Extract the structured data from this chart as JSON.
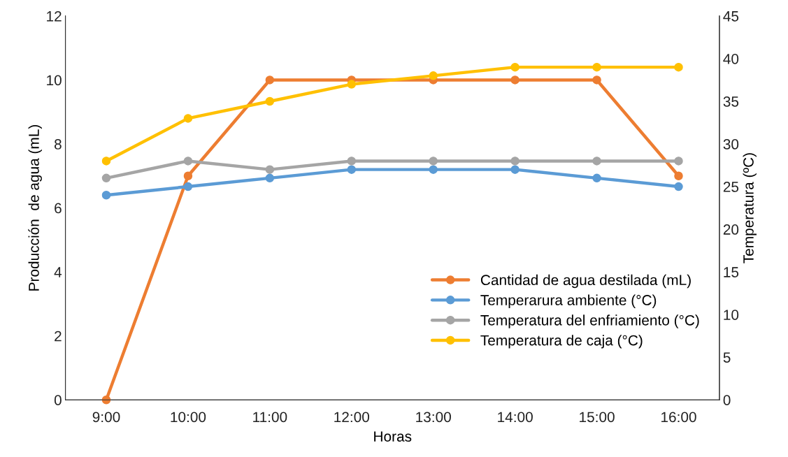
{
  "chart_data": {
    "type": "line",
    "xlabel": "Horas",
    "ylabel": "Producción  de agua (mL)",
    "y2label": "Temperatura (ºC)",
    "categories": [
      "9:00",
      "10:00",
      "11:00",
      "12:00",
      "13:00",
      "14:00",
      "15:00",
      "16:00"
    ],
    "series": [
      {
        "name": "Cantidad de agua destilada (mL)",
        "color": "#ed7d31",
        "values": [
          0,
          7,
          10,
          10,
          10,
          10,
          10,
          7
        ]
      },
      {
        "name": "Temperarura ambiente (°C)",
        "color": "#5b9bd5",
        "axis": "y2",
        "values": [
          24,
          25,
          26,
          27,
          27,
          27,
          26,
          25
        ]
      },
      {
        "name": "Temperatura del enfriamiento (°C)",
        "color": "#a5a5a5",
        "axis": "y2",
        "values": [
          26,
          28,
          27,
          28,
          28,
          28,
          28,
          28
        ]
      },
      {
        "name": "Temperatura de caja (°C)",
        "color": "#ffc000",
        "axis": "y2",
        "values": [
          28,
          33,
          35,
          37,
          38,
          39,
          39,
          39
        ]
      }
    ],
    "ylim": [
      0,
      12
    ],
    "yticks": [
      0,
      2,
      4,
      6,
      8,
      10,
      12
    ],
    "y2lim": [
      0,
      45
    ],
    "y2ticks": [
      0,
      5,
      10,
      15,
      20,
      25,
      30,
      35,
      40,
      45
    ],
    "marker": "circle",
    "line_style": "solid",
    "legend": "bottom right",
    "grid": false
  }
}
